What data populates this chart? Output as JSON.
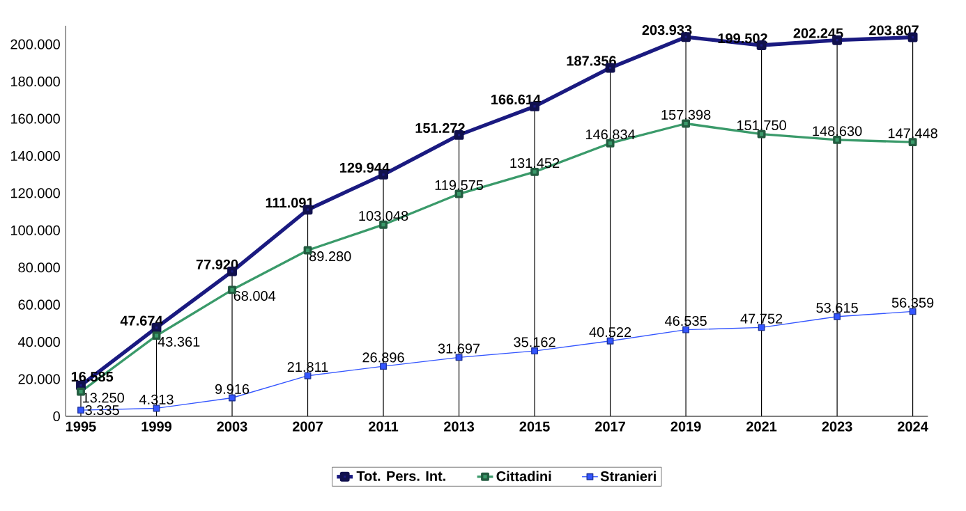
{
  "chart_data": {
    "type": "line",
    "categories": [
      "1995",
      "1999",
      "2003",
      "2007",
      "2011",
      "2013",
      "2015",
      "2017",
      "2019",
      "2021",
      "2023",
      "2024"
    ],
    "series": [
      {
        "name": "Tot. Pers. Int.",
        "color": "#1a1a80",
        "values": [
          16585,
          47674,
          77920,
          111091,
          129944,
          151272,
          166614,
          187356,
          203933,
          199502,
          202245,
          203807
        ],
        "value_labels": [
          "16.585",
          "47.674",
          "77.920",
          "111.091",
          "129.944",
          "151.272",
          "166.614",
          "187.356",
          "203.933",
          "199.502",
          "202.245",
          "203.807"
        ]
      },
      {
        "name": "Cittadini",
        "color": "#3a9a6a",
        "values": [
          13250,
          43361,
          68004,
          89280,
          103048,
          119575,
          131452,
          146834,
          157398,
          151750,
          148630,
          147448
        ],
        "value_labels": [
          "13.250",
          "43.361",
          "68.004",
          "89.280",
          "103.048",
          "119.575",
          "131.452",
          "146.834",
          "157.398",
          "151.750",
          "148.630",
          "147.448"
        ]
      },
      {
        "name": "Stranieri",
        "color": "#3355ff",
        "values": [
          3335,
          4313,
          9916,
          21811,
          26896,
          31697,
          35162,
          40522,
          46535,
          47752,
          53615,
          56359
        ],
        "value_labels": [
          "3.335",
          "4.313",
          "9.916",
          "21.811",
          "26.896",
          "31.697",
          "35.162",
          "40.522",
          "46.535",
          "47.752",
          "53.615",
          "56.359"
        ]
      }
    ],
    "ylim": [
      0,
      210000
    ],
    "yticks": [
      {
        "value": 0,
        "label": "0"
      },
      {
        "value": 20000,
        "label": "20.000"
      },
      {
        "value": 40000,
        "label": "40.000"
      },
      {
        "value": 60000,
        "label": "60.000"
      },
      {
        "value": 80000,
        "label": "80.000"
      },
      {
        "value": 100000,
        "label": "100.000"
      },
      {
        "value": 120000,
        "label": "120.000"
      },
      {
        "value": 140000,
        "label": "140.000"
      },
      {
        "value": 160000,
        "label": "160.000"
      },
      {
        "value": 180000,
        "label": "180.000"
      },
      {
        "value": 200000,
        "label": "200.000"
      }
    ],
    "grid": "x",
    "legend": "bottom",
    "marker": "square",
    "line_style": "solid"
  }
}
